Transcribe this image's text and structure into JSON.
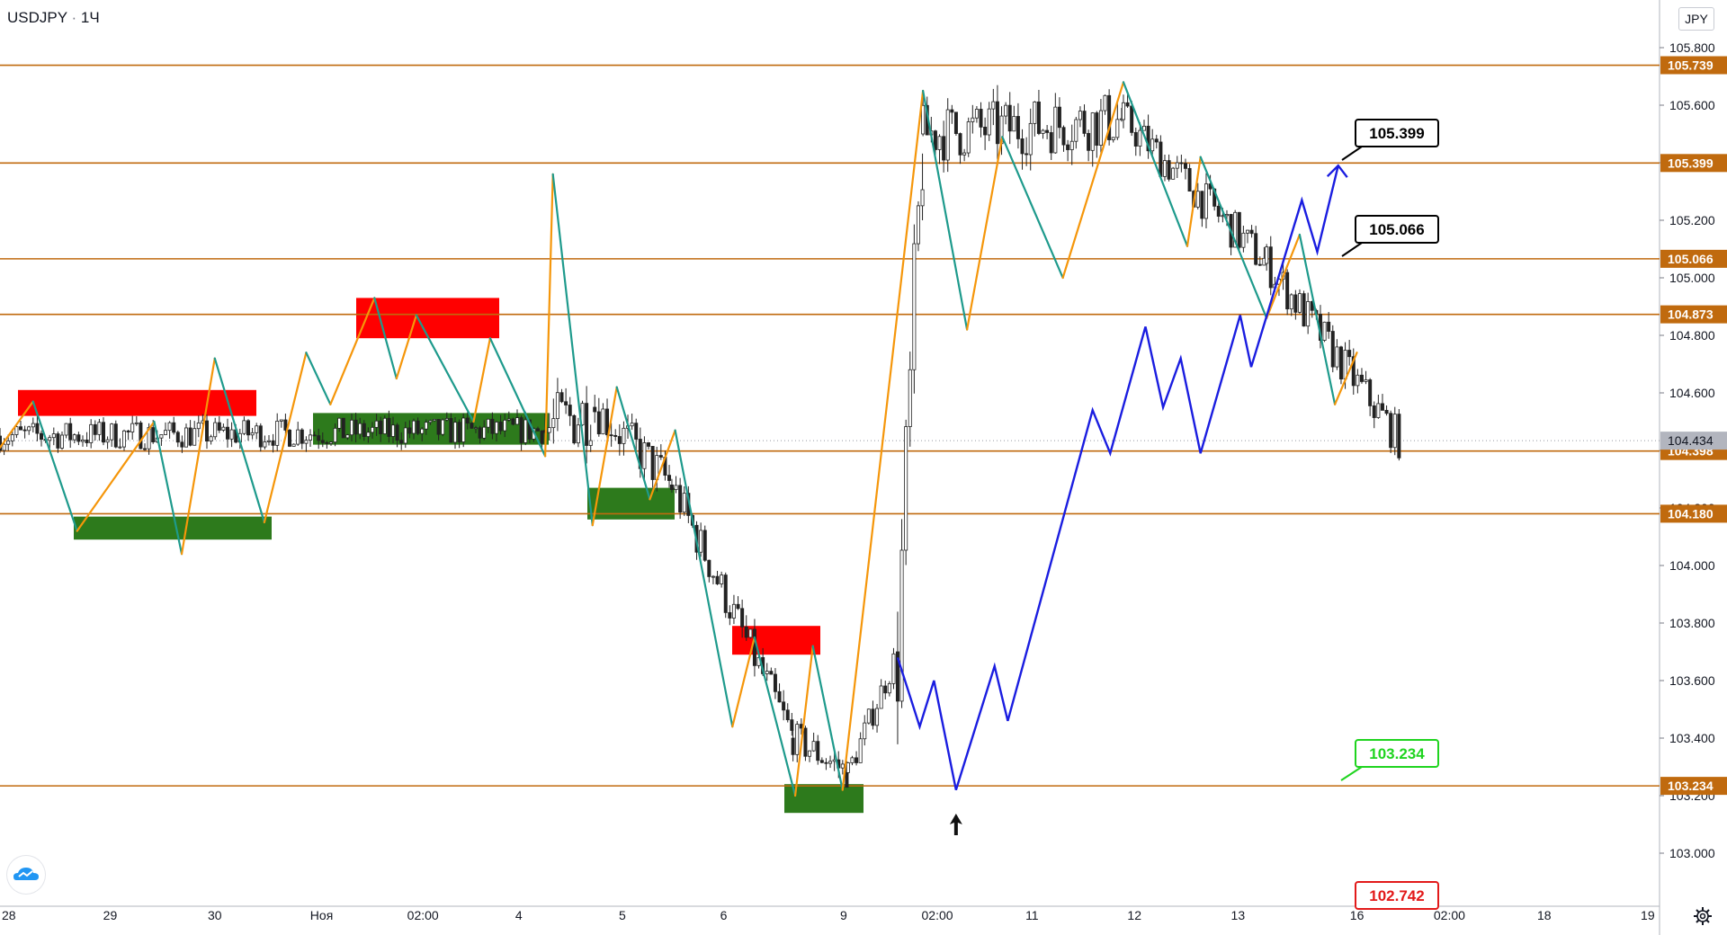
{
  "header": {
    "symbol": "USDJPY",
    "separator": "·",
    "timeframe": "1Ч",
    "currency": "JPY"
  },
  "colors": {
    "level_line": "#c06a0e",
    "bull": "#f5960a",
    "bear": "#1e9a8c",
    "projection": "#1a1de0",
    "supply_zone": "#ff0000",
    "demand_zone": "#2d7a1c",
    "candle": "#222222",
    "current_price_bg": "#b2b5be",
    "green_label": "#1fd41f",
    "red_label": "#e21a1a"
  },
  "icons": {
    "logo": "tradingview-cloud-icon",
    "settings": "gear-icon",
    "marker": "arrow-up-icon"
  },
  "chart_data": {
    "type": "candlestick",
    "symbol": "USDJPY",
    "interval": "1Ч",
    "ylim": [
      102.88,
      105.955
    ],
    "y_ticks": [
      "105.800",
      "105.600",
      "105.400",
      "105.200",
      "105.000",
      "104.800",
      "104.600",
      "104.400",
      "104.200",
      "104.000",
      "103.800",
      "103.600",
      "103.400",
      "103.200",
      "103.000"
    ],
    "x_ticks": [
      "28",
      "29",
      "30",
      "Ноя",
      "02:00",
      "4",
      "5",
      "6",
      "9",
      "02:00",
      "11",
      "12",
      "13",
      "16",
      "02:00",
      "18",
      "19"
    ],
    "current_price": "104.434",
    "levels": [
      {
        "price": 105.739,
        "label": "105.739"
      },
      {
        "price": 105.399,
        "label": "105.399"
      },
      {
        "price": 105.066,
        "label": "105.066"
      },
      {
        "price": 104.873,
        "label": "104.873"
      },
      {
        "price": 104.398,
        "label": "104.398"
      },
      {
        "price": 104.18,
        "label": "104.180"
      },
      {
        "price": 103.234,
        "label": "103.234"
      }
    ],
    "callouts": [
      {
        "text": "105.399",
        "style": "black"
      },
      {
        "text": "105.066",
        "style": "black"
      },
      {
        "text": "103.234",
        "style": "green"
      },
      {
        "text": "102.742",
        "style": "red"
      }
    ],
    "supply_zones": [
      {
        "from": "28",
        "to": "30",
        "low": 104.52,
        "high": 104.61
      },
      {
        "from": "Ноя",
        "to": "4",
        "low": 104.79,
        "high": 104.93
      },
      {
        "from": "6",
        "to": "9",
        "low": 103.69,
        "high": 103.79
      }
    ],
    "demand_zones": [
      {
        "from": "28",
        "to": "30",
        "low": 104.09,
        "high": 104.17
      },
      {
        "from": "Ноя",
        "to": "4",
        "low": 104.42,
        "high": 104.53
      },
      {
        "from": "5",
        "to": "6",
        "low": 104.16,
        "high": 104.27
      },
      {
        "from": "9",
        "to": "9",
        "low": 103.14,
        "high": 103.24
      }
    ],
    "swings": [
      [
        0,
        104.41
      ],
      [
        30,
        104.57
      ],
      [
        70,
        104.12
      ],
      [
        140,
        104.5
      ],
      [
        165,
        104.04
      ],
      [
        195,
        104.72
      ],
      [
        240,
        104.15
      ],
      [
        278,
        104.74
      ],
      [
        300,
        104.56
      ],
      [
        340,
        104.93
      ],
      [
        360,
        104.65
      ],
      [
        378,
        104.87
      ],
      [
        430,
        104.5
      ],
      [
        445,
        104.79
      ],
      [
        495,
        104.38
      ],
      [
        502,
        105.36
      ],
      [
        538,
        104.14
      ],
      [
        560,
        104.62
      ],
      [
        590,
        104.23
      ],
      [
        613,
        104.47
      ],
      [
        665,
        103.44
      ],
      [
        685,
        103.75
      ],
      [
        722,
        103.2
      ],
      [
        738,
        103.72
      ],
      [
        765,
        103.22
      ],
      [
        838,
        105.65
      ],
      [
        878,
        104.82
      ],
      [
        910,
        105.49
      ],
      [
        965,
        105.0
      ],
      [
        1020,
        105.68
      ],
      [
        1078,
        105.11
      ],
      [
        1090,
        105.42
      ],
      [
        1150,
        104.86
      ],
      [
        1180,
        105.15
      ],
      [
        1212,
        104.56
      ],
      [
        1232,
        104.74
      ]
    ],
    "projection": [
      [
        815,
        103.68
      ],
      [
        835,
        103.44
      ],
      [
        848,
        103.6
      ],
      [
        868,
        103.22
      ],
      [
        903,
        103.65
      ],
      [
        915,
        103.46
      ],
      [
        992,
        104.54
      ],
      [
        1008,
        104.39
      ],
      [
        1040,
        104.83
      ],
      [
        1056,
        104.55
      ],
      [
        1072,
        104.72
      ],
      [
        1090,
        104.39
      ],
      [
        1126,
        104.87
      ],
      [
        1136,
        104.69
      ],
      [
        1182,
        105.27
      ],
      [
        1196,
        105.09
      ],
      [
        1215,
        105.39
      ]
    ],
    "segments": [
      {
        "x0": 0,
        "x1": 495,
        "p0": 104.45,
        "p1": 104.47,
        "vol": 0.05
      },
      {
        "x0": 495,
        "x1": 540,
        "p0": 104.47,
        "p1": 104.55,
        "vol": 0.12
      },
      {
        "x0": 540,
        "x1": 610,
        "p0": 104.55,
        "p1": 104.28,
        "vol": 0.08
      },
      {
        "x0": 610,
        "x1": 720,
        "p0": 104.28,
        "p1": 103.4,
        "vol": 0.07
      },
      {
        "x0": 720,
        "x1": 770,
        "p0": 103.4,
        "p1": 103.28,
        "vol": 0.06
      },
      {
        "x0": 770,
        "x1": 815,
        "p0": 103.28,
        "p1": 103.7,
        "vol": 0.05
      },
      {
        "x0": 815,
        "x1": 838,
        "p0": 103.7,
        "p1": 105.5,
        "vol": 0.25
      },
      {
        "x0": 838,
        "x1": 1020,
        "p0": 105.5,
        "p1": 105.55,
        "vol": 0.1
      },
      {
        "x0": 1020,
        "x1": 1150,
        "p0": 105.55,
        "p1": 105.05,
        "vol": 0.07
      },
      {
        "x0": 1150,
        "x1": 1272,
        "p0": 105.05,
        "p1": 104.43,
        "vol": 0.07
      }
    ]
  }
}
